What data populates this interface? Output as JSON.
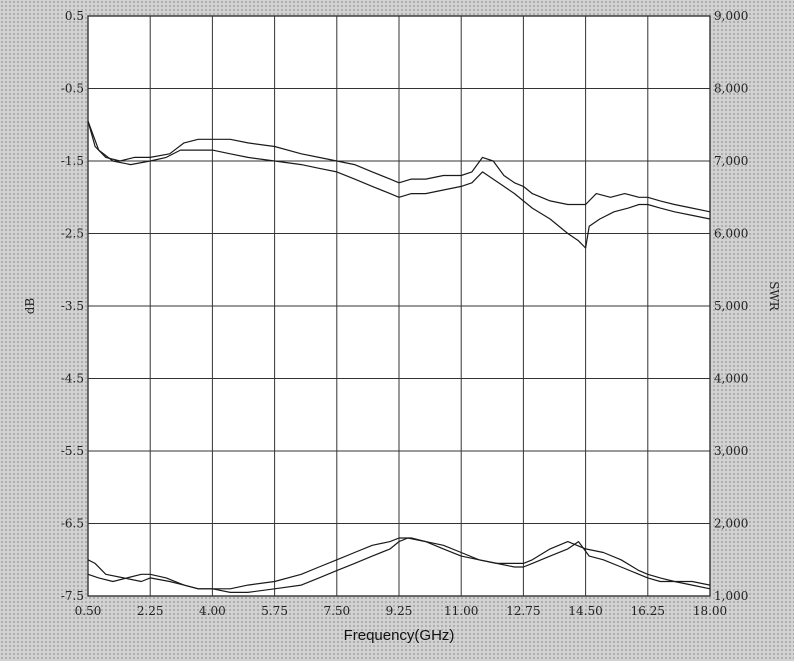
{
  "chart_data": {
    "type": "line",
    "xlabel": "Frequency(GHz)",
    "ylabel": "dB",
    "y2label": "SWR",
    "xlim": [
      0.5,
      18.0
    ],
    "ylim": [
      -7.5,
      0.5
    ],
    "y2lim": [
      1.0,
      9.0
    ],
    "xticks": [
      0.5,
      2.25,
      4.0,
      5.75,
      7.5,
      9.25,
      11.0,
      12.75,
      14.5,
      16.25,
      18.0
    ],
    "xtick_labels": [
      "0.50",
      "2.25",
      "4.00",
      "5.75",
      "7.50",
      "9.25",
      "11.00",
      "12.75",
      "14.50",
      "16.25",
      "18.00"
    ],
    "yticks": [
      0.5,
      -0.5,
      -1.5,
      -2.5,
      -3.5,
      -4.5,
      -5.5,
      -6.5,
      -7.5
    ],
    "ytick_labels": [
      "0.5",
      "-0.5",
      "-1.5",
      "-2.5",
      "-3.5",
      "-4.5",
      "-5.5",
      "-6.5",
      "-7.5"
    ],
    "y2ticks": [
      9,
      8,
      7,
      6,
      5,
      4,
      3,
      2,
      1
    ],
    "y2tick_labels": [
      "9,000",
      "8,000",
      "7,000",
      "6,000",
      "5,000",
      "4,000",
      "3,000",
      "2,000",
      "1,000"
    ],
    "grid": true,
    "series": [
      {
        "axis": "left",
        "x": [
          0.5,
          0.7,
          1.0,
          1.4,
          1.8,
          2.25,
          2.8,
          3.2,
          3.6,
          4.0,
          4.5,
          5.0,
          5.75,
          6.5,
          7.0,
          7.5,
          8.0,
          8.5,
          9.0,
          9.25,
          9.6,
          10.0,
          10.5,
          11.0,
          11.3,
          11.6,
          11.9,
          12.2,
          12.5,
          12.75,
          13.0,
          13.5,
          14.0,
          14.5,
          14.8,
          15.2,
          15.6,
          16.0,
          16.25,
          16.6,
          17.0,
          17.5,
          18.0
        ],
        "y": [
          -0.95,
          -1.3,
          -1.45,
          -1.5,
          -1.45,
          -1.45,
          -1.4,
          -1.25,
          -1.2,
          -1.2,
          -1.2,
          -1.25,
          -1.3,
          -1.4,
          -1.45,
          -1.5,
          -1.55,
          -1.65,
          -1.75,
          -1.8,
          -1.75,
          -1.75,
          -1.7,
          -1.7,
          -1.65,
          -1.45,
          -1.5,
          -1.7,
          -1.8,
          -1.85,
          -1.95,
          -2.05,
          -2.1,
          -2.1,
          -1.95,
          -2.0,
          -1.95,
          -2.0,
          -2.0,
          -2.05,
          -2.1,
          -2.15,
          -2.2
        ]
      },
      {
        "axis": "left",
        "x": [
          0.5,
          0.8,
          1.2,
          1.7,
          2.25,
          2.7,
          3.1,
          3.5,
          4.0,
          4.5,
          5.0,
          5.75,
          6.5,
          7.0,
          7.5,
          8.0,
          8.5,
          9.0,
          9.25,
          9.6,
          10.0,
          10.5,
          11.0,
          11.3,
          11.6,
          11.9,
          12.2,
          12.5,
          12.75,
          13.0,
          13.5,
          14.0,
          14.3,
          14.5,
          14.6,
          14.9,
          15.3,
          15.7,
          16.0,
          16.25,
          16.6,
          17.0,
          17.5,
          18.0
        ],
        "y": [
          -0.95,
          -1.35,
          -1.5,
          -1.55,
          -1.5,
          -1.45,
          -1.35,
          -1.35,
          -1.35,
          -1.4,
          -1.45,
          -1.5,
          -1.55,
          -1.6,
          -1.65,
          -1.75,
          -1.85,
          -1.95,
          -2.0,
          -1.95,
          -1.95,
          -1.9,
          -1.85,
          -1.8,
          -1.65,
          -1.75,
          -1.85,
          -1.95,
          -2.05,
          -2.15,
          -2.3,
          -2.5,
          -2.6,
          -2.7,
          -2.4,
          -2.3,
          -2.2,
          -2.15,
          -2.1,
          -2.1,
          -2.15,
          -2.2,
          -2.25,
          -2.3
        ]
      },
      {
        "axis": "right",
        "x": [
          0.5,
          0.7,
          1.0,
          1.5,
          2.0,
          2.25,
          2.8,
          3.2,
          3.6,
          4.0,
          4.5,
          5.0,
          5.75,
          6.5,
          7.0,
          7.5,
          8.0,
          8.5,
          9.0,
          9.25,
          9.5,
          10.0,
          10.5,
          11.0,
          11.5,
          12.0,
          12.5,
          12.75,
          13.0,
          13.5,
          14.0,
          14.3,
          14.6,
          15.0,
          15.5,
          16.0,
          16.25,
          16.6,
          17.0,
          17.5,
          18.0
        ],
        "y": [
          1.5,
          1.45,
          1.3,
          1.25,
          1.2,
          1.25,
          1.2,
          1.15,
          1.1,
          1.1,
          1.05,
          1.05,
          1.1,
          1.15,
          1.25,
          1.35,
          1.45,
          1.55,
          1.65,
          1.75,
          1.8,
          1.75,
          1.65,
          1.55,
          1.5,
          1.45,
          1.4,
          1.4,
          1.45,
          1.55,
          1.65,
          1.75,
          1.55,
          1.5,
          1.4,
          1.3,
          1.25,
          1.2,
          1.2,
          1.2,
          1.15
        ]
      },
      {
        "axis": "right",
        "x": [
          0.5,
          0.8,
          1.2,
          1.6,
          2.0,
          2.25,
          2.7,
          3.2,
          3.6,
          4.0,
          4.5,
          5.0,
          5.75,
          6.5,
          7.0,
          7.5,
          8.0,
          8.5,
          9.0,
          9.25,
          9.6,
          10.0,
          10.5,
          11.0,
          11.5,
          12.0,
          12.5,
          12.75,
          13.0,
          13.5,
          14.0,
          14.5,
          15.0,
          15.5,
          16.0,
          16.25,
          16.6,
          17.0,
          17.5,
          18.0
        ],
        "y": [
          1.3,
          1.25,
          1.2,
          1.25,
          1.3,
          1.3,
          1.25,
          1.15,
          1.1,
          1.1,
          1.1,
          1.15,
          1.2,
          1.3,
          1.4,
          1.5,
          1.6,
          1.7,
          1.75,
          1.8,
          1.8,
          1.75,
          1.7,
          1.6,
          1.5,
          1.45,
          1.45,
          1.45,
          1.5,
          1.65,
          1.75,
          1.65,
          1.6,
          1.5,
          1.35,
          1.3,
          1.25,
          1.2,
          1.15,
          1.1
        ]
      }
    ]
  }
}
